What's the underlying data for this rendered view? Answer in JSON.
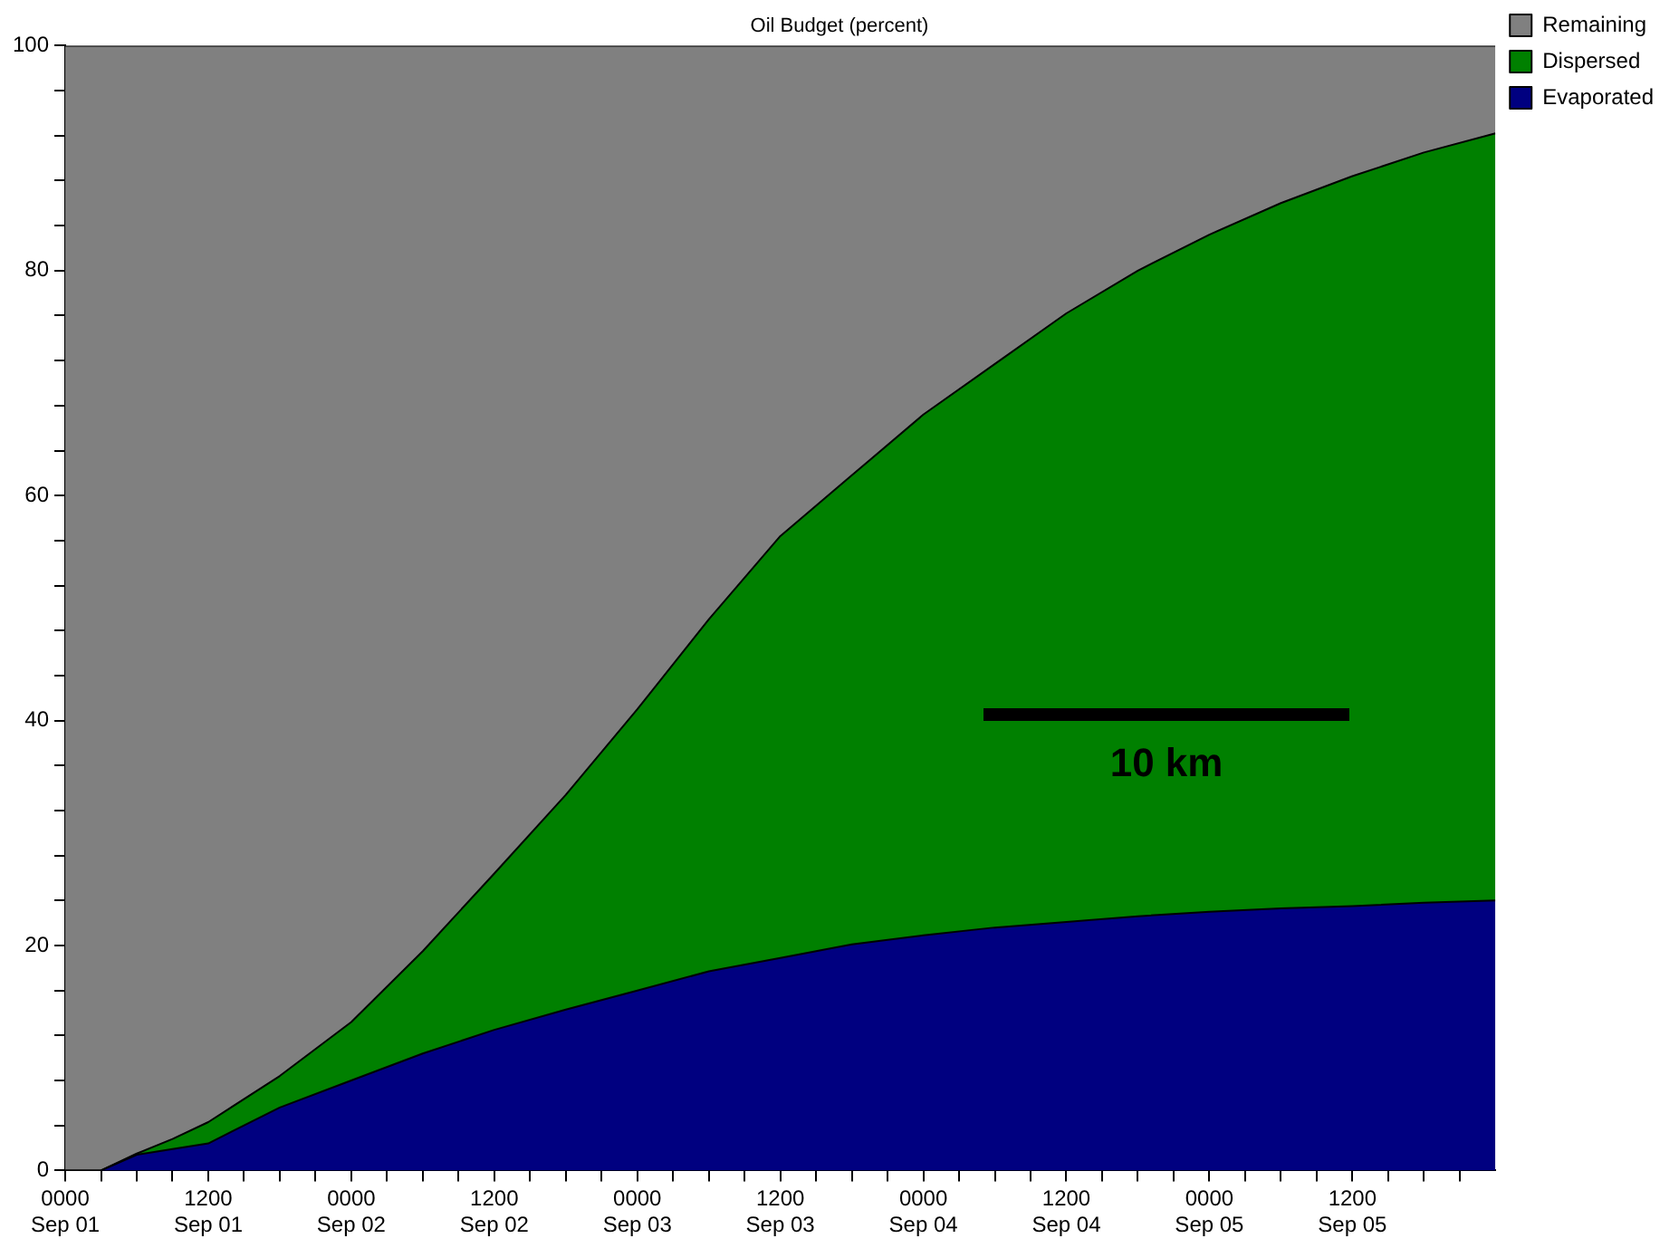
{
  "chart_data": {
    "type": "area",
    "title": "Oil Budget (percent)",
    "stacked": true,
    "legend": "top right",
    "grid": false,
    "x": [
      "--09-01T00:00",
      "--09-01T03:00",
      "--09-01T06:00",
      "--09-01T09:00",
      "--09-01T12:00",
      "--09-01T18:00",
      "--09-02T00:00",
      "--09-02T06:00",
      "--09-02T12:00",
      "--09-02T18:00",
      "--09-03T00:00",
      "--09-03T06:00",
      "--09-03T12:00",
      "--09-03T18:00",
      "--09-04T00:00",
      "--09-04T06:00",
      "--09-04T12:00",
      "--09-04T18:00",
      "--09-05T00:00",
      "--09-05T06:00",
      "--09-05T12:00",
      "--09-05T18:00",
      "--09-06T00:00"
    ],
    "xlim": [
      "--09-01T00:00",
      "--09-06T00:00"
    ],
    "xticks": [
      {
        "value": "--09-01T00:00",
        "label": "0000 Sep 01"
      },
      {
        "value": "--09-01T03:00",
        "label": null
      },
      {
        "value": "--09-01T06:00",
        "label": null
      },
      {
        "value": "--09-01T09:00",
        "label": null
      },
      {
        "value": "--09-01T12:00",
        "label": "1200 Sep 01"
      },
      {
        "value": "--09-01T15:00",
        "label": null
      },
      {
        "value": "--09-01T18:00",
        "label": null
      },
      {
        "value": "--09-01T21:00",
        "label": null
      },
      {
        "value": "--09-02T00:00",
        "label": "0000 Sep 02"
      },
      {
        "value": "--09-02T03:00",
        "label": null
      },
      {
        "value": "--09-02T06:00",
        "label": null
      },
      {
        "value": "--09-02T09:00",
        "label": null
      },
      {
        "value": "--09-02T12:00",
        "label": "1200 Sep 02"
      },
      {
        "value": "--09-02T15:00",
        "label": null
      },
      {
        "value": "--09-02T18:00",
        "label": null
      },
      {
        "value": "--09-02T21:00",
        "label": null
      },
      {
        "value": "--09-03T00:00",
        "label": "0000 Sep 03"
      },
      {
        "value": "--09-03T03:00",
        "label": null
      },
      {
        "value": "--09-03T06:00",
        "label": null
      },
      {
        "value": "--09-03T09:00",
        "label": null
      },
      {
        "value": "--09-03T12:00",
        "label": "1200 Sep 03"
      },
      {
        "value": "--09-03T15:00",
        "label": null
      },
      {
        "value": "--09-03T18:00",
        "label": null
      },
      {
        "value": "--09-03T21:00",
        "label": null
      },
      {
        "value": "--09-04T00:00",
        "label": "0000 Sep 04"
      },
      {
        "value": "--09-04T03:00",
        "label": null
      },
      {
        "value": "--09-04T06:00",
        "label": null
      },
      {
        "value": "--09-04T09:00",
        "label": null
      },
      {
        "value": "--09-04T12:00",
        "label": "1200 Sep 04"
      },
      {
        "value": "--09-04T15:00",
        "label": null
      },
      {
        "value": "--09-04T18:00",
        "label": null
      },
      {
        "value": "--09-04T21:00",
        "label": null
      },
      {
        "value": "--09-05T00:00",
        "label": "0000 Sep 05"
      },
      {
        "value": "--09-05T03:00",
        "label": null
      },
      {
        "value": "--09-05T06:00",
        "label": null
      },
      {
        "value": "--09-05T09:00",
        "label": null
      },
      {
        "value": "--09-05T12:00",
        "label": "1200 Sep 05"
      },
      {
        "value": "--09-05T15:00",
        "label": null
      },
      {
        "value": "--09-05T18:00",
        "label": null
      },
      {
        "value": "--09-05T21:00",
        "label": null
      }
    ],
    "ylim": [
      0,
      100
    ],
    "yticks": [
      0,
      {
        "value": 4,
        "label": null
      },
      {
        "value": 8,
        "label": null
      },
      {
        "value": 12,
        "label": null
      },
      {
        "value": 16,
        "label": null
      },
      20,
      {
        "value": 24,
        "label": null
      },
      {
        "value": 28,
        "label": null
      },
      {
        "value": 32,
        "label": null
      },
      {
        "value": 36,
        "label": null
      },
      40,
      {
        "value": 44,
        "label": null
      },
      {
        "value": 48,
        "label": null
      },
      {
        "value": 52,
        "label": null
      },
      {
        "value": 56,
        "label": null
      },
      60,
      {
        "value": 64,
        "label": null
      },
      {
        "value": 68,
        "label": null
      },
      {
        "value": 72,
        "label": null
      },
      {
        "value": 76,
        "label": null
      },
      80,
      {
        "value": 84,
        "label": null
      },
      {
        "value": 88,
        "label": null
      },
      {
        "value": 92,
        "label": null
      },
      {
        "value": 96,
        "label": null
      },
      100
    ],
    "series": [
      {
        "name": "Evaporated",
        "color": "#000080",
        "values": [
          0,
          0,
          1.4,
          1.9,
          2.4,
          5.6,
          8,
          10.4,
          12.5,
          14.3,
          16,
          17.7,
          18.9,
          20.1,
          20.9,
          21.6,
          22.1,
          22.6,
          23,
          23.3,
          23.5,
          23.8,
          24
        ]
      },
      {
        "name": "Dispersed",
        "color": "#008000",
        "values": [
          0,
          0,
          0.1,
          0.9,
          1.9,
          2.8,
          5.2,
          9.1,
          13.9,
          19.1,
          25,
          31.3,
          37.5,
          41.7,
          46.3,
          50.1,
          54.1,
          57.4,
          60.2,
          62.7,
          64.9,
          66.7,
          68.2
        ]
      },
      {
        "name": "Remaining",
        "color": "#808080",
        "values": [
          100,
          100,
          98.5,
          97.2,
          95.7,
          91.6,
          86.8,
          80.5,
          73.6,
          66.6,
          59,
          51,
          43.6,
          38.2,
          32.8,
          28.3,
          23.8,
          20,
          16.8,
          14,
          11.6,
          9.5,
          7.8
        ]
      }
    ],
    "annotations": [
      "10 km"
    ]
  }
}
